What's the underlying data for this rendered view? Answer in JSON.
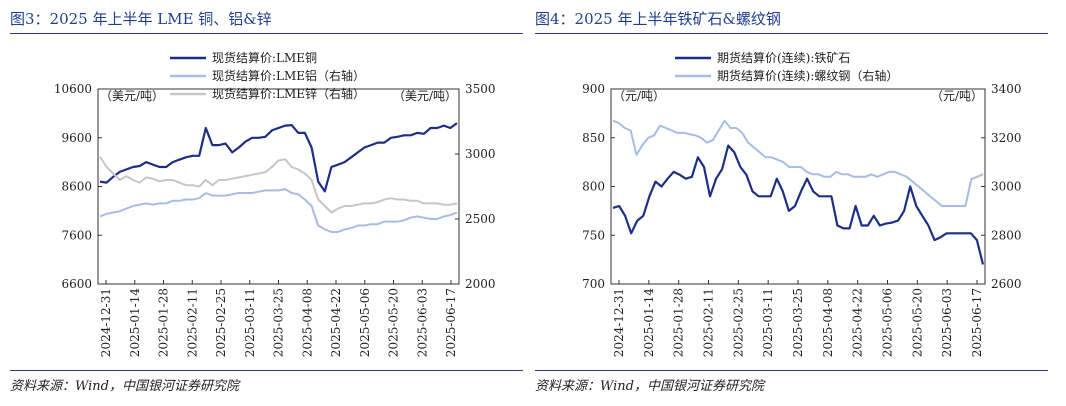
{
  "chart_data": [
    {
      "type": "line",
      "title": "图3：2025 年上半年 LME 铜、铝&锌",
      "source": "资料来源：Wind，中国银河证券研究院",
      "left_unit": "（美元/吨）",
      "right_unit": "（美元/吨）",
      "ylim": [
        6600,
        10600
      ],
      "yticks": [
        "6600",
        "7600",
        "8600",
        "9600",
        "10600"
      ],
      "y2lim": [
        2000,
        3500
      ],
      "y2ticks": [
        "2000",
        "2500",
        "3000",
        "3500"
      ],
      "xticks": [
        "2024-12-31",
        "2025-01-14",
        "2025-01-28",
        "2025-02-11",
        "2025-02-25",
        "2025-03-11",
        "2025-03-25",
        "2025-04-08",
        "2025-04-22",
        "2025-05-06",
        "2025-05-20",
        "2025-06-03",
        "2025-06-17"
      ],
      "colors": {
        "copper": "#1c2f86",
        "aluminum": "#a7bde3",
        "zinc": "#c6c6c6"
      },
      "series": [
        {
          "name": "现货结算价:LME铜",
          "axis": "left",
          "values": [
            8700,
            8680,
            8800,
            8900,
            8950,
            9000,
            9020,
            9100,
            9050,
            9000,
            9000,
            9100,
            9150,
            9200,
            9230,
            9230,
            9800,
            9450,
            9450,
            9480,
            9300,
            9400,
            9520,
            9600,
            9600,
            9620,
            9750,
            9800,
            9850,
            9860,
            9700,
            9700,
            9400,
            8700,
            8500,
            9000,
            9050,
            9100,
            9200,
            9300,
            9400,
            9450,
            9500,
            9500,
            9600,
            9620,
            9650,
            9650,
            9700,
            9680,
            9800,
            9800,
            9850,
            9800,
            9900
          ]
        },
        {
          "name": "现货结算价:LME铝（右轴）",
          "axis": "right",
          "values": [
            2520,
            2540,
            2550,
            2560,
            2580,
            2600,
            2610,
            2620,
            2610,
            2620,
            2620,
            2640,
            2640,
            2650,
            2650,
            2660,
            2700,
            2680,
            2680,
            2680,
            2690,
            2700,
            2700,
            2700,
            2710,
            2720,
            2720,
            2720,
            2730,
            2700,
            2690,
            2650,
            2600,
            2450,
            2420,
            2400,
            2400,
            2420,
            2430,
            2450,
            2450,
            2460,
            2460,
            2480,
            2480,
            2480,
            2490,
            2510,
            2520,
            2510,
            2500,
            2500,
            2520,
            2530,
            2550
          ]
        },
        {
          "name": "现货结算价:LME锌（右轴）",
          "axis": "right",
          "values": [
            2980,
            2900,
            2850,
            2800,
            2830,
            2800,
            2780,
            2820,
            2810,
            2790,
            2800,
            2800,
            2780,
            2760,
            2760,
            2750,
            2800,
            2760,
            2800,
            2800,
            2810,
            2820,
            2830,
            2840,
            2850,
            2860,
            2900,
            2950,
            2960,
            2900,
            2880,
            2850,
            2800,
            2650,
            2600,
            2550,
            2580,
            2600,
            2600,
            2610,
            2620,
            2620,
            2630,
            2650,
            2660,
            2650,
            2650,
            2640,
            2640,
            2620,
            2620,
            2620,
            2610,
            2610,
            2620
          ]
        }
      ]
    },
    {
      "type": "line",
      "title": "图4：2025 年上半年铁矿石&螺纹钢",
      "source": "资料来源：Wind，中国银河证券研究院",
      "left_unit": "（元/吨）",
      "right_unit": "（元/吨）",
      "ylim": [
        700,
        900
      ],
      "yticks": [
        "700",
        "750",
        "800",
        "850",
        "900"
      ],
      "y2lim": [
        2600,
        3400
      ],
      "y2ticks": [
        "2600",
        "2800",
        "3000",
        "3200",
        "3400"
      ],
      "xticks": [
        "2024-12-31",
        "2025-01-14",
        "2025-01-28",
        "2025-02-11",
        "2025-02-25",
        "2025-03-11",
        "2025-03-25",
        "2025-04-08",
        "2025-04-22",
        "2025-05-06",
        "2025-05-20",
        "2025-06-03",
        "2025-06-17"
      ],
      "colors": {
        "iron_ore": "#1c2f86",
        "rebar": "#a7bde3"
      },
      "series": [
        {
          "name": "期货结算价(连续):铁矿石",
          "axis": "left",
          "values": [
            778,
            780,
            770,
            752,
            765,
            770,
            790,
            805,
            800,
            808,
            815,
            812,
            808,
            810,
            830,
            820,
            790,
            808,
            818,
            842,
            835,
            820,
            812,
            795,
            790,
            790,
            790,
            808,
            795,
            775,
            780,
            795,
            808,
            795,
            790,
            790,
            790,
            760,
            757,
            757,
            780,
            760,
            760,
            770,
            760,
            762,
            763,
            765,
            775,
            800,
            780,
            770,
            760,
            745,
            748,
            752,
            752,
            752,
            752,
            752,
            745,
            720
          ]
        },
        {
          "name": "期货结算价(连续):螺纹钢（右轴）",
          "axis": "right",
          "values": [
            3270,
            3260,
            3240,
            3230,
            3130,
            3170,
            3200,
            3210,
            3250,
            3240,
            3230,
            3220,
            3220,
            3215,
            3210,
            3200,
            3180,
            3190,
            3230,
            3270,
            3240,
            3240,
            3220,
            3180,
            3160,
            3140,
            3120,
            3120,
            3110,
            3100,
            3080,
            3080,
            3080,
            3060,
            3050,
            3050,
            3040,
            3040,
            3060,
            3050,
            3050,
            3040,
            3040,
            3040,
            3050,
            3040,
            3050,
            3060,
            3060,
            3050,
            3040,
            3020,
            3000,
            2980,
            2960,
            2940,
            2920,
            2920,
            2920,
            2920,
            2920,
            3030,
            3040,
            3050
          ]
        }
      ]
    }
  ]
}
